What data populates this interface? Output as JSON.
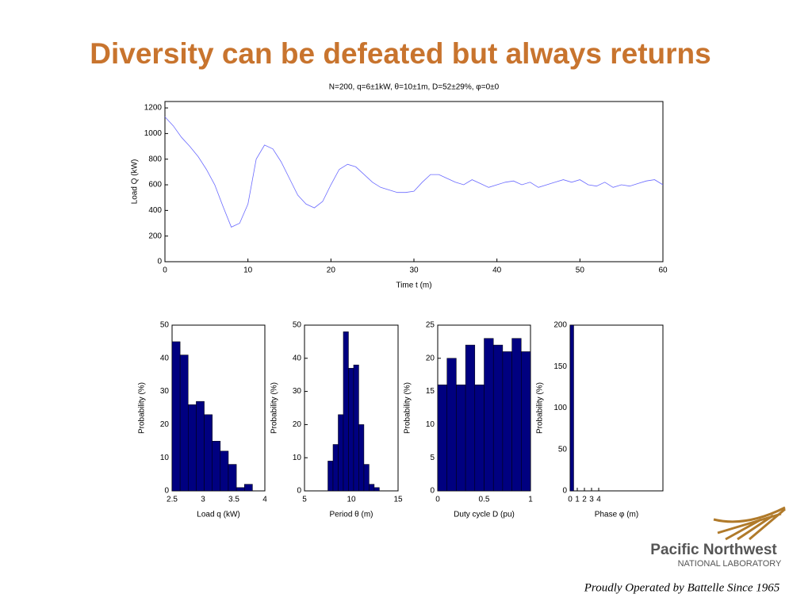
{
  "title": "Diversity can be defeated but always returns",
  "logo": {
    "name": "Pacific Northwest",
    "sub": "NATIONAL LABORATORY",
    "tagline": "Proudly Operated by Battelle Since 1965"
  },
  "chart_data": [
    {
      "type": "line",
      "title": "N=200, q=6±1kW, θ=10±1m, D=52±29%, φ=0±0",
      "xlabel": "Time t (m)",
      "ylabel": "Load  Q (kW)",
      "color": "#6a6aff",
      "x": [
        0,
        1,
        2,
        3,
        4,
        5,
        6,
        7,
        8,
        9,
        10,
        11,
        12,
        13,
        14,
        15,
        16,
        17,
        18,
        19,
        20,
        21,
        22,
        23,
        24,
        25,
        26,
        27,
        28,
        29,
        30,
        31,
        32,
        33,
        34,
        35,
        36,
        37,
        38,
        39,
        40,
        41,
        42,
        43,
        44,
        45,
        46,
        47,
        48,
        49,
        50,
        51,
        52,
        53,
        54,
        55,
        56,
        57,
        58,
        59,
        60
      ],
      "values": [
        1130,
        1060,
        970,
        900,
        820,
        720,
        600,
        430,
        270,
        300,
        450,
        800,
        910,
        880,
        780,
        650,
        520,
        450,
        420,
        470,
        600,
        720,
        760,
        740,
        680,
        620,
        580,
        560,
        540,
        540,
        550,
        620,
        680,
        680,
        650,
        620,
        600,
        640,
        610,
        580,
        600,
        620,
        630,
        600,
        620,
        580,
        600,
        620,
        640,
        620,
        640,
        600,
        590,
        620,
        580,
        600,
        590,
        610,
        630,
        640,
        600
      ],
      "xlim": [
        0,
        60
      ],
      "xticks": [
        0,
        10,
        20,
        30,
        40,
        50,
        60
      ],
      "ylim": [
        0,
        1250
      ],
      "yticks": [
        0,
        200,
        400,
        600,
        800,
        1000,
        1200
      ]
    },
    {
      "type": "histogram",
      "xlabel": "Load q (kW)",
      "ylabel": "Probability (%)",
      "color": "#000080",
      "bins": [
        2.5,
        2.63,
        2.76,
        2.89,
        3.02,
        3.15,
        3.28,
        3.41,
        3.54,
        3.67,
        3.8
      ],
      "values": [
        45,
        41,
        26,
        27,
        23,
        15,
        12,
        8,
        1,
        2
      ],
      "xlim": [
        2.5,
        4
      ],
      "xticks": [
        2.5,
        3,
        3.5,
        4
      ],
      "ylim": [
        0,
        50
      ],
      "yticks": [
        0,
        10,
        20,
        30,
        40,
        50
      ]
    },
    {
      "type": "histogram",
      "xlabel": "Period θ (m)",
      "ylabel": "Probability (%)",
      "color": "#000080",
      "bins": [
        7.5,
        8.05,
        8.6,
        9.15,
        9.7,
        10.25,
        10.8,
        11.35,
        11.9,
        12.45,
        13.0
      ],
      "values": [
        9,
        14,
        23,
        48,
        37,
        38,
        20,
        8,
        2,
        1
      ],
      "xlim": [
        5,
        15
      ],
      "xticks": [
        5,
        10,
        15
      ],
      "ylim": [
        0,
        50
      ],
      "yticks": [
        0,
        10,
        20,
        30,
        40,
        50
      ]
    },
    {
      "type": "histogram",
      "xlabel": "Duty cycle D (pu)",
      "ylabel": "Probability (%)",
      "color": "#000080",
      "bins": [
        0,
        0.1,
        0.2,
        0.3,
        0.4,
        0.5,
        0.6,
        0.7,
        0.8,
        0.9,
        1.0
      ],
      "values": [
        16,
        20,
        16,
        22,
        16,
        23,
        22,
        21,
        23,
        21
      ],
      "xlim": [
        0,
        1
      ],
      "xticks": [
        0,
        0.5,
        1
      ],
      "ylim": [
        0,
        25
      ],
      "yticks": [
        0,
        5,
        10,
        15,
        20,
        25
      ]
    },
    {
      "type": "histogram",
      "xlabel": "Phase φ (m)",
      "ylabel": "Probability (%)",
      "color": "#000080",
      "bins": [
        0,
        0.5
      ],
      "values": [
        200
      ],
      "xlim": [
        0,
        13
      ],
      "xticks": [
        0,
        1,
        2,
        3,
        4
      ],
      "ylim": [
        0,
        200
      ],
      "yticks": [
        0,
        50,
        100,
        150,
        200
      ]
    }
  ]
}
